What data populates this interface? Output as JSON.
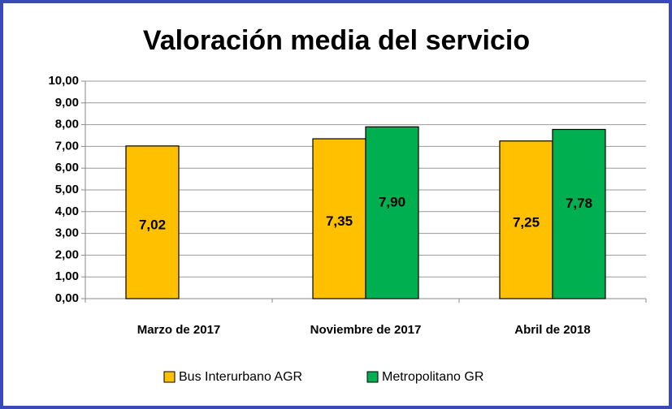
{
  "chart_data": {
    "type": "bar",
    "title": "Valoración media del servicio",
    "categories": [
      "Marzo de 2017",
      "Noviembre de 2017",
      "Abril de 2018"
    ],
    "series": [
      {
        "name": "Bus Interurbano AGR",
        "color": "#ffc000",
        "values": [
          7.02,
          7.35,
          7.25
        ],
        "value_labels": [
          "7,02",
          "7,35",
          "7,25"
        ]
      },
      {
        "name": "Metropolitano GR",
        "color": "#00b050",
        "values": [
          null,
          7.9,
          7.78
        ],
        "value_labels": [
          null,
          "7,90",
          "7,78"
        ]
      }
    ],
    "ylim": [
      0,
      10
    ],
    "yticks": [
      {
        "value": 0,
        "label": "0,00"
      },
      {
        "value": 1,
        "label": "1,00"
      },
      {
        "value": 2,
        "label": "2,00"
      },
      {
        "value": 3,
        "label": "3,00"
      },
      {
        "value": 4,
        "label": "4,00"
      },
      {
        "value": 5,
        "label": "5,00"
      },
      {
        "value": 6,
        "label": "6,00"
      },
      {
        "value": 7,
        "label": "7,00"
      },
      {
        "value": 8,
        "label": "8,00"
      },
      {
        "value": 9,
        "label": "9,00"
      },
      {
        "value": 10,
        "label": "10,00"
      }
    ],
    "grid": true,
    "legend": "bottom"
  }
}
